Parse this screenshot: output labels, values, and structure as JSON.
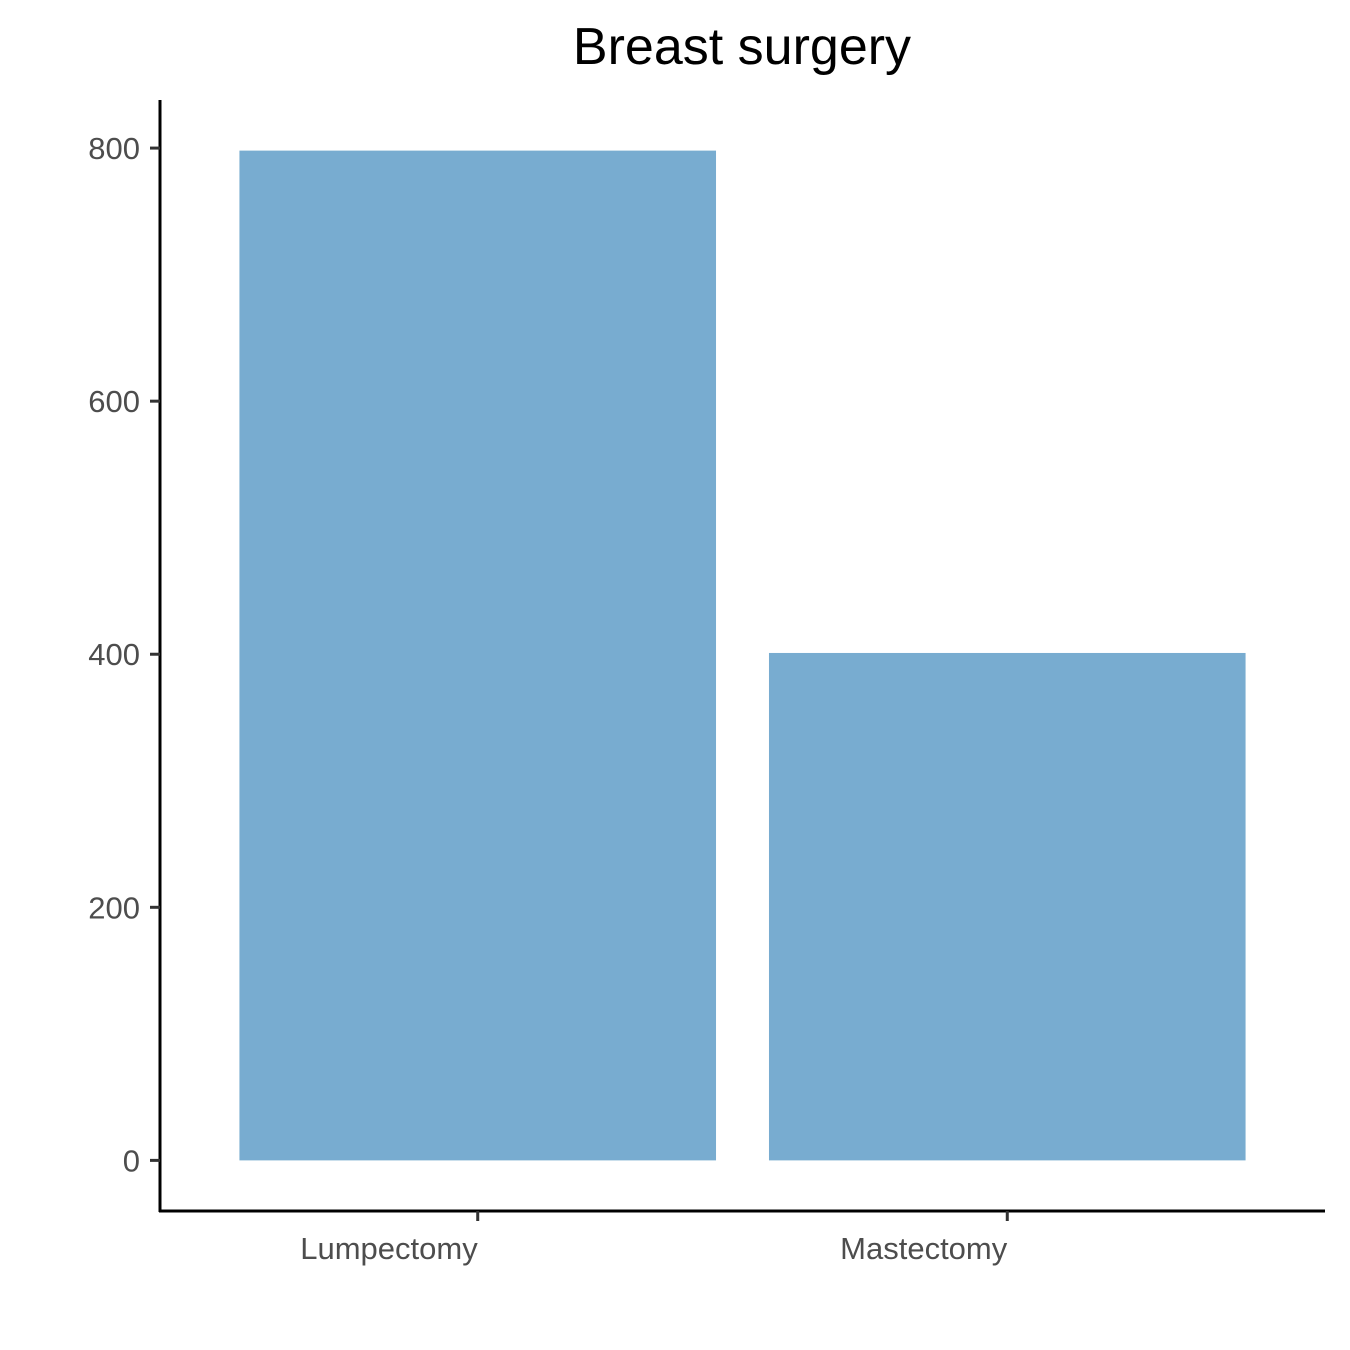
{
  "chart_data": {
    "type": "bar",
    "title": "Breast surgery",
    "xlabel": "",
    "ylabel": "",
    "categories": [
      "Lumpectomy",
      "Mastectomy"
    ],
    "values": [
      798,
      401
    ],
    "ylim": [
      -40,
      838
    ],
    "yticks": [
      0,
      200,
      400,
      600,
      800
    ],
    "ytick_labels": [
      "0",
      "200",
      "400",
      "600",
      "800"
    ],
    "bar_color": "#78acd0",
    "grid": false,
    "legend": "none"
  }
}
